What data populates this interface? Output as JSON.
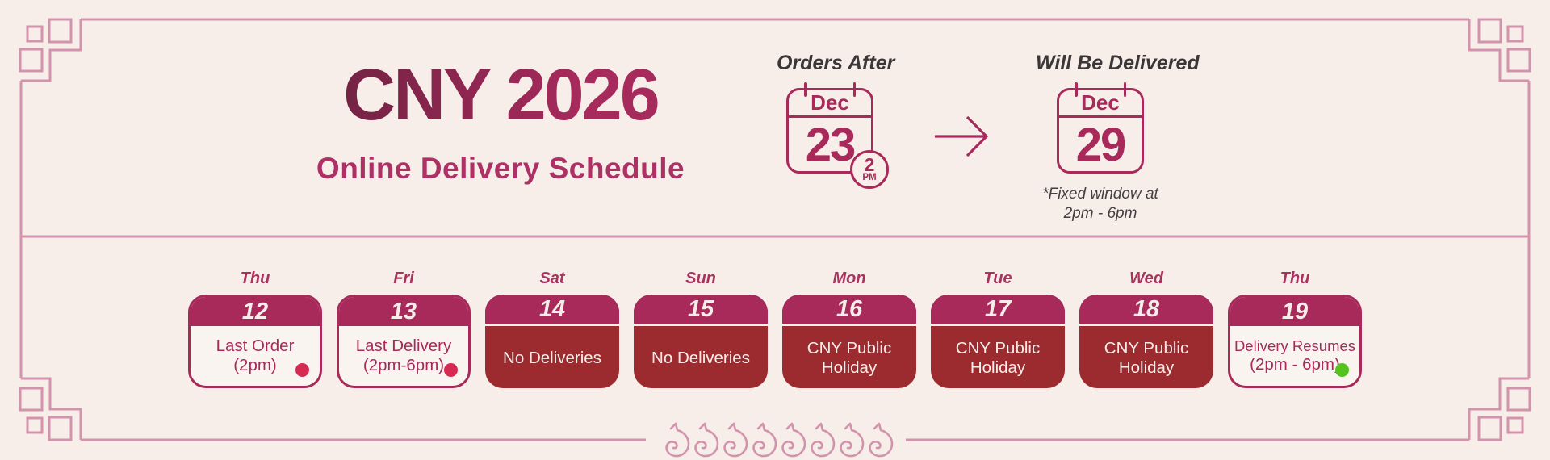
{
  "colors": {
    "background": "#f7eeea",
    "card_cream": "#faf4f1",
    "frame_pink": "#d393ac",
    "accent_magenta": "#a72a5a",
    "magenta_text": "#a62b5b",
    "dark_red": "#9c2b2f",
    "cream_text": "#f6edea",
    "title_grad_start": "#6e2242",
    "title_grad_end": "#a72a5c",
    "subtitle_color": "#ae3165",
    "weekday_color": "#a8335f",
    "dot_pink": "#d62a52",
    "dot_green": "#55c31e",
    "note_color": "#453f41",
    "label_color": "#3b3637"
  },
  "header": {
    "title": "CNY 2026",
    "subtitle": "Online Delivery Schedule",
    "orders_after": {
      "label": "Orders After",
      "month": "Dec",
      "day": "23",
      "badge_hour": "2",
      "badge_meridiem": "PM"
    },
    "will_be_delivered": {
      "label": "Will Be Delivered",
      "month": "Dec",
      "day": "29",
      "note_line1": "*Fixed window at",
      "note_line2": "2pm - 6pm"
    }
  },
  "schedule": {
    "cards": [
      {
        "weekday": "Thu",
        "date": "12",
        "lines": [
          "Last Order",
          "(2pm)"
        ],
        "style": "outline",
        "dot": "pink"
      },
      {
        "weekday": "Fri",
        "date": "13",
        "lines": [
          "Last Delivery",
          "(2pm-6pm)"
        ],
        "style": "outline",
        "dot": "pink"
      },
      {
        "weekday": "Sat",
        "date": "14",
        "lines": [
          "No Deliveries"
        ],
        "style": "filled",
        "dot": null
      },
      {
        "weekday": "Sun",
        "date": "15",
        "lines": [
          "No Deliveries"
        ],
        "style": "filled",
        "dot": null
      },
      {
        "weekday": "Mon",
        "date": "16",
        "lines": [
          "CNY Public",
          "Holiday"
        ],
        "style": "filled",
        "dot": null
      },
      {
        "weekday": "Tue",
        "date": "17",
        "lines": [
          "CNY Public",
          "Holiday"
        ],
        "style": "filled",
        "dot": null
      },
      {
        "weekday": "Wed",
        "date": "18",
        "lines": [
          "CNY Public",
          "Holiday"
        ],
        "style": "filled",
        "dot": null
      },
      {
        "weekday": "Thu",
        "date": "19",
        "lines": [
          "Delivery Resumes",
          "(2pm - 6pm)"
        ],
        "style": "outline",
        "dot": "green"
      }
    ]
  },
  "decor": {
    "horse_icon_count": 8
  }
}
